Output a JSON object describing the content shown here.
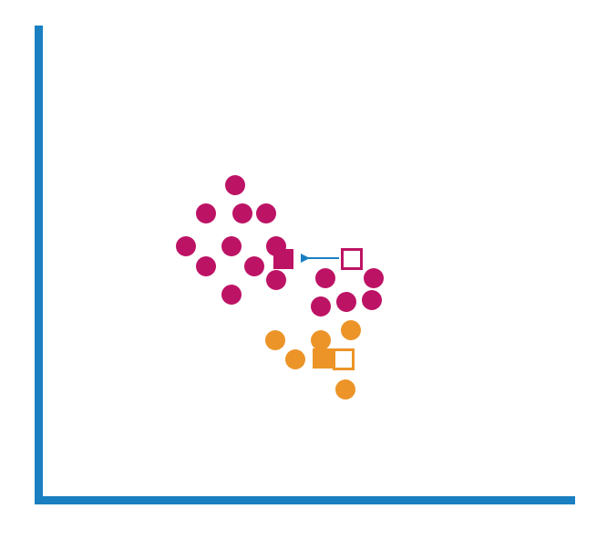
{
  "colors": {
    "axis": "#1a7fc0",
    "cluster_a": "#bd1365",
    "cluster_b": "#ec9428",
    "arrow": "#1a7fc0",
    "background": "#ffffff"
  },
  "clusters": [
    {
      "id": "cluster-a",
      "color_key": "cluster_a",
      "points": [
        [
          258,
          203
        ],
        [
          226,
          234
        ],
        [
          266,
          234
        ],
        [
          292,
          234
        ],
        [
          204,
          270
        ],
        [
          254,
          270
        ],
        [
          303,
          270
        ],
        [
          226,
          292
        ],
        [
          279,
          292
        ],
        [
          303,
          307
        ],
        [
          254,
          323
        ],
        [
          357,
          305
        ],
        [
          410,
          305
        ],
        [
          352,
          336
        ],
        [
          380,
          331
        ],
        [
          408,
          329
        ]
      ],
      "filled_centroid": [
        311,
        284
      ],
      "hollow_centroid": [
        386,
        284
      ]
    },
    {
      "id": "cluster-b",
      "color_key": "cluster_b",
      "points": [
        [
          302,
          373
        ],
        [
          352,
          373
        ],
        [
          385,
          362
        ],
        [
          324,
          394
        ],
        [
          379,
          427
        ]
      ],
      "filled_centroid": [
        354,
        393
      ],
      "hollow_centroid": [
        377,
        394
      ]
    }
  ],
  "arrow": {
    "from": [
      372,
      283
    ],
    "to": [
      330,
      283
    ]
  }
}
